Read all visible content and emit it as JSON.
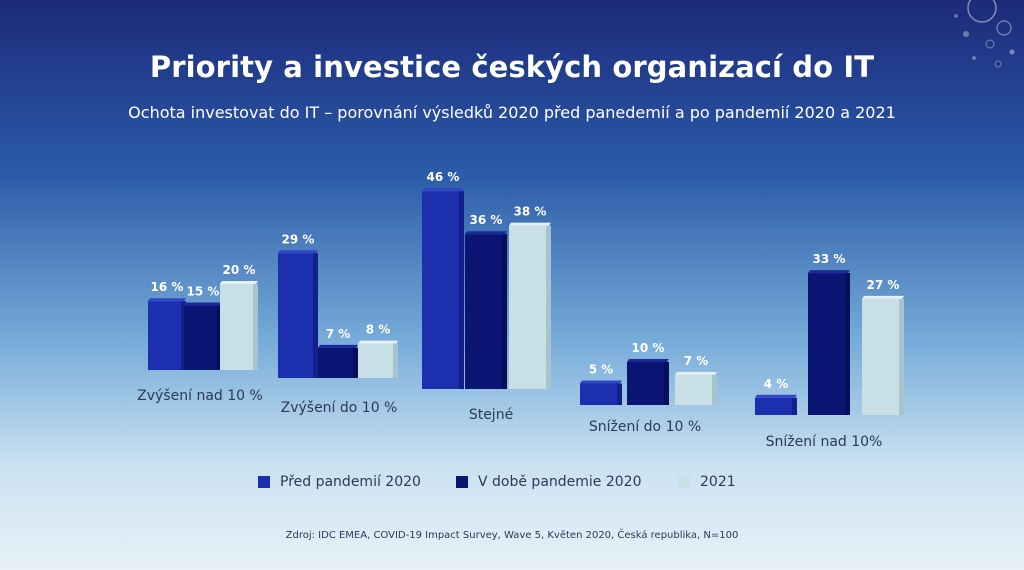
{
  "slide": {
    "title": "Priority a investice českých organizací do IT",
    "subtitle": "Ochota investovat do IT – porovnání výsledků 2020 před panedemií a po pandemií 2020 a 2021",
    "source": "Zdroj: IDC EMEA, COVID-19 Impact Survey, Wave 5, Květen 2020, Česká republika, N=100",
    "decoration_icon": "water-bubbles-icon"
  },
  "colors": {
    "series_1": "#1c2fae",
    "series_2": "#0b1674",
    "series_3": "#c8dfe6",
    "text_dark": "#2b3a55",
    "text_light": "#ffffff"
  },
  "legend": {
    "items": [
      {
        "label": "Před pandemií 2020",
        "color": "#1c2fae"
      },
      {
        "label": "V době pandemie 2020",
        "color": "#0b1674"
      },
      {
        "label": "2021",
        "color": "#c8dfe6"
      }
    ],
    "placement": "bottom"
  },
  "chart_data": {
    "type": "bar",
    "title": "Ochota investovat do IT – porovnání výsledků 2020 před panedemií a po pandemií 2020 a 2021",
    "xlabel": "",
    "ylabel": "",
    "unit": "%",
    "ylim": [
      0,
      50
    ],
    "grid": false,
    "legend_placement": "bottom",
    "categories": [
      "Zvýšení nad 10 %",
      "Zvýšení do 10 %",
      "Stejné",
      "Snížení do 10 %",
      "Snížení nad 10%"
    ],
    "series": [
      {
        "name": "Před pandemií 2020",
        "values": [
          16,
          29,
          46,
          5,
          4
        ],
        "labels": [
          "16 %",
          "29 %",
          "46 %",
          "5 %",
          "4 %"
        ]
      },
      {
        "name": "V době pandemie 2020",
        "values": [
          15,
          7,
          36,
          10,
          33
        ],
        "labels": [
          "15 %",
          "7 %",
          "36 %",
          "10 %",
          "33 %"
        ]
      },
      {
        "name": "2021",
        "values": [
          20,
          8,
          38,
          7,
          27
        ],
        "labels": [
          "20 %",
          "8 %",
          "38 %",
          "7 %",
          "27 %"
        ]
      }
    ]
  }
}
